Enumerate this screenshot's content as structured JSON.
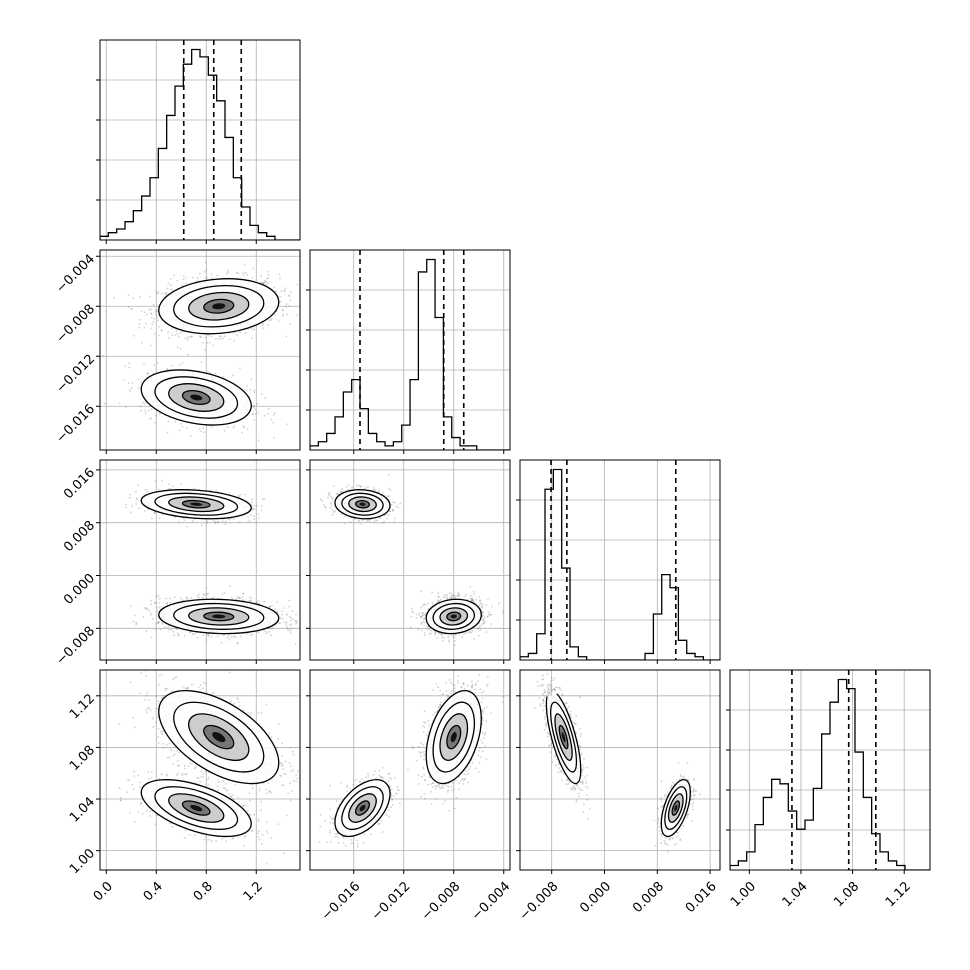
{
  "chart_data": {
    "type": "scatter",
    "subtype": "corner-plot",
    "grid": true,
    "colors": {
      "hist": "#000000",
      "points": "#7f7f7f",
      "grid": "#b0b0b0",
      "quantile_line": "#000000"
    },
    "parameters": [
      {
        "range": [
          -0.05,
          1.55
        ],
        "ticks": [
          0.0,
          0.4,
          0.8,
          1.2
        ],
        "tick_labels": [
          "0.0",
          "0.4",
          "0.8",
          "1.2"
        ],
        "quantiles": [
          0.62,
          0.86,
          1.08
        ],
        "histogram": {
          "edges_start": -0.05,
          "bin_width": 0.066667,
          "counts": [
            1,
            2,
            3,
            5,
            8,
            12,
            17,
            25,
            34,
            42,
            48,
            52,
            50,
            45,
            38,
            28,
            17,
            9,
            4,
            2,
            1,
            0,
            0,
            0
          ]
        }
      },
      {
        "range": [
          -0.0195,
          -0.0035
        ],
        "ticks": [
          -0.016,
          -0.012,
          -0.008,
          -0.004
        ],
        "tick_labels": [
          "−0.016",
          "−0.012",
          "−0.008",
          "−0.004"
        ],
        "quantiles": [
          -0.0155,
          -0.0088,
          -0.0072
        ],
        "histogram": {
          "edges_start": -0.0195,
          "bin_width": 0.000667,
          "counts": [
            1,
            2,
            4,
            8,
            14,
            17,
            10,
            4,
            2,
            1,
            2,
            6,
            17,
            43,
            46,
            32,
            8,
            3,
            1,
            1,
            0,
            0,
            0,
            0
          ]
        }
      },
      {
        "range": [
          -0.0128,
          0.0175
        ],
        "ticks": [
          -0.008,
          0.0,
          0.008,
          0.016
        ],
        "tick_labels": [
          "−0.008",
          "0.000",
          "0.008",
          "0.016"
        ],
        "quantiles": [
          -0.0081,
          -0.0057,
          0.0108
        ],
        "histogram": {
          "edges_start": -0.0128,
          "bin_width": 0.001263,
          "counts": [
            1,
            2,
            8,
            52,
            58,
            28,
            4,
            1,
            0,
            0,
            0,
            0,
            0,
            0,
            0,
            2,
            14,
            26,
            22,
            6,
            2,
            1,
            0,
            0
          ]
        }
      },
      {
        "range": [
          0.985,
          1.14
        ],
        "ticks": [
          1.0,
          1.04,
          1.08,
          1.12
        ],
        "tick_labels": [
          "1.00",
          "1.04",
          "1.08",
          "1.12"
        ],
        "quantiles": [
          1.033,
          1.077,
          1.098
        ],
        "histogram": {
          "edges_start": 0.985,
          "bin_width": 0.006458,
          "counts": [
            1,
            2,
            4,
            10,
            16,
            20,
            19,
            13,
            9,
            11,
            18,
            30,
            37,
            42,
            40,
            26,
            16,
            8,
            4,
            2,
            1,
            0,
            0,
            0
          ]
        }
      }
    ],
    "modes": [
      {
        "weight": 0.65,
        "mean": [
          0.9,
          -0.008,
          -0.0062,
          1.088
        ],
        "sd": [
          0.24,
          0.0011,
          0.0013,
          0.018
        ],
        "corr": [
          [
            1,
            0.15,
            -0.1,
            -0.55
          ],
          [
            0.15,
            1,
            0.1,
            0.4
          ],
          [
            -0.1,
            0.1,
            1,
            -0.7
          ],
          [
            -0.55,
            0.4,
            -0.7,
            1
          ]
        ]
      },
      {
        "weight": 0.35,
        "mean": [
          0.72,
          -0.0153,
          0.0108,
          1.033
        ],
        "sd": [
          0.22,
          0.0011,
          0.0011,
          0.011
        ],
        "corr": [
          [
            1,
            -0.3,
            -0.25,
            -0.55
          ],
          [
            -0.3,
            1,
            -0.1,
            0.5
          ],
          [
            -0.25,
            -0.1,
            1,
            0.55
          ],
          [
            -0.55,
            0.5,
            0.55,
            1
          ]
        ]
      }
    ]
  }
}
